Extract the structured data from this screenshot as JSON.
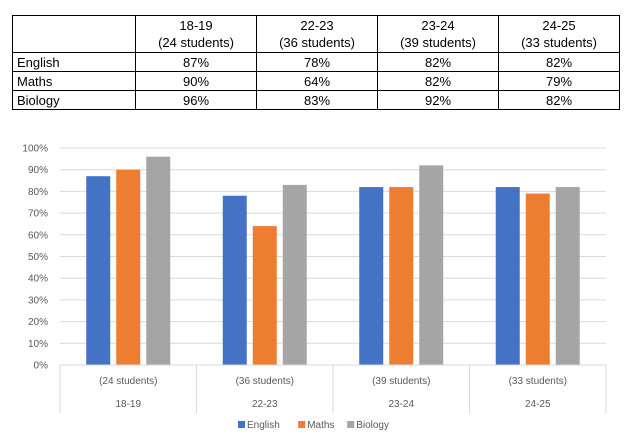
{
  "table": {
    "headers": [
      {
        "year": "18-19",
        "students": "(24 students)"
      },
      {
        "year": "22-23",
        "students": "(36 students)"
      },
      {
        "year": "23-24",
        "students": "(39 students)"
      },
      {
        "year": "24-25",
        "students": "(33 students)"
      }
    ],
    "rows": [
      {
        "subject": "English",
        "values": [
          "87%",
          "78%",
          "82%",
          "82%"
        ]
      },
      {
        "subject": "Maths",
        "values": [
          "90%",
          "64%",
          "82%",
          "79%"
        ]
      },
      {
        "subject": "Biology",
        "values": [
          "96%",
          "83%",
          "92%",
          "82%"
        ]
      }
    ]
  },
  "chart_data": {
    "type": "bar",
    "title": "",
    "xlabel": "",
    "ylabel": "",
    "categories": [
      "18-19",
      "22-23",
      "23-24",
      "24-25"
    ],
    "category_sublabels": [
      "(24 students)",
      "(36 students)",
      "(39 students)",
      "(33 students)"
    ],
    "series": [
      {
        "name": "English",
        "color": "#4472C4",
        "values": [
          87,
          78,
          82,
          82
        ]
      },
      {
        "name": "Maths",
        "color": "#ED7D31",
        "values": [
          90,
          64,
          82,
          79
        ]
      },
      {
        "name": "Biology",
        "color": "#A5A5A5",
        "values": [
          96,
          83,
          92,
          82
        ]
      }
    ],
    "ylim": [
      0,
      100
    ],
    "yticks": [
      "0%",
      "10%",
      "20%",
      "30%",
      "40%",
      "50%",
      "60%",
      "70%",
      "80%",
      "90%",
      "100%"
    ],
    "grid": true,
    "legend": "bottom"
  }
}
